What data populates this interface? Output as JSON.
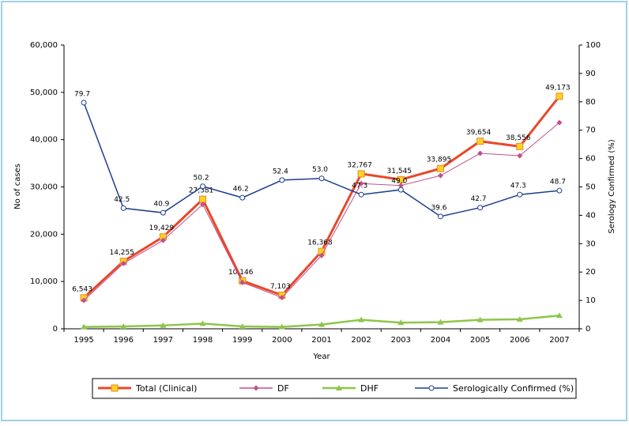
{
  "chart_data": {
    "type": "line",
    "x_label": "Year",
    "y_label": "No of cases",
    "y2_label": "Serology Confirmed (%)",
    "categories": [
      "1995",
      "1996",
      "1997",
      "1998",
      "1999",
      "2000",
      "2001",
      "2002",
      "2003",
      "2004",
      "2005",
      "2006",
      "2007"
    ],
    "ylim": [
      0,
      60000
    ],
    "yticks": [
      0,
      {
        "value": 10000,
        "label": "10,000"
      },
      {
        "value": 20000,
        "label": "20,000"
      },
      {
        "value": 30000,
        "label": "30,000"
      },
      {
        "value": 40000,
        "label": "40,000"
      },
      {
        "value": 50000,
        "label": "50,000"
      },
      {
        "value": 60000,
        "label": "60,000"
      }
    ],
    "y2lim": [
      0,
      100
    ],
    "y2ticks": [
      0,
      10,
      20,
      30,
      40,
      50,
      60,
      70,
      80,
      90,
      100
    ],
    "series": [
      {
        "name": "Total (Clinical)",
        "color": "#e8482a",
        "marker": "square",
        "values": [
          6543,
          14255,
          19429,
          27381,
          10146,
          7103,
          16368,
          32767,
          31545,
          33895,
          39654,
          38556,
          49173
        ],
        "value_labels": [
          "6,543",
          "14,255",
          "19,429",
          "27,381",
          "10,146",
          "7,103",
          "16,368",
          "32,767",
          "31,545",
          "33,895",
          "39,654",
          "38,556",
          "49,173"
        ]
      },
      {
        "name": "DF",
        "color": "#c0508e",
        "marker": "diamond",
        "values": [
          6000,
          13800,
          18700,
          26300,
          9800,
          6600,
          15500,
          30700,
          30300,
          32400,
          37100,
          36600,
          43600
        ]
      },
      {
        "name": "DHF",
        "color": "#8dc64a",
        "marker": "triangle",
        "values": [
          400,
          500,
          700,
          1100,
          500,
          400,
          900,
          1900,
          1300,
          1400,
          1900,
          2000,
          2800
        ]
      },
      {
        "name": "Serologically Confirmed (%)",
        "color": "#1f3e8c",
        "marker": "circle",
        "axis": "y2",
        "values": [
          79.7,
          42.5,
          40.9,
          50.2,
          46.2,
          52.4,
          53.0,
          47.3,
          49.0,
          39.6,
          42.7,
          47.3,
          48.7
        ],
        "value_labels": [
          "79.7",
          "42.5",
          "40.9",
          "50.2",
          "46.2",
          "52.4",
          "53.0",
          "47.3",
          "49.0",
          "39.6",
          "42.7",
          "47.3",
          "48.7"
        ]
      }
    ]
  }
}
